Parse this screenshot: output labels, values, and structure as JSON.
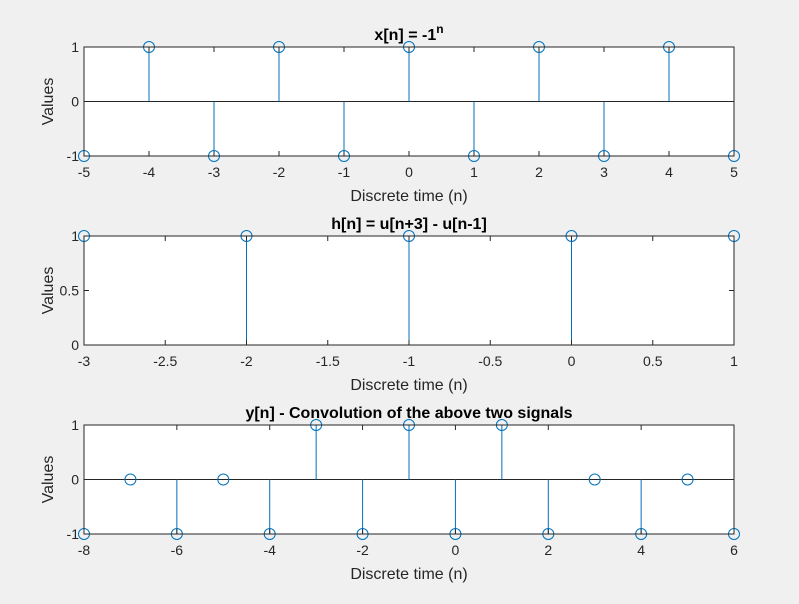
{
  "chart_data": [
    {
      "type": "stem",
      "title": "x[n] = -1",
      "title_superscript": "n",
      "xlabel": "Discrete time (n)",
      "ylabel": "Values",
      "xlim": [
        -5,
        5
      ],
      "ylim": [
        -1,
        1
      ],
      "xticks": [
        -5,
        -4,
        -3,
        -2,
        -1,
        0,
        1,
        2,
        3,
        4,
        5
      ],
      "yticks": [
        -1,
        0,
        1
      ],
      "xtick_labels": [
        "-5",
        "-4",
        "-3",
        "-2",
        "-1",
        "0",
        "1",
        "2",
        "3",
        "4",
        "5"
      ],
      "ytick_labels": [
        "-1",
        "0",
        "1"
      ],
      "x": [
        -5,
        -4,
        -3,
        -2,
        -1,
        0,
        1,
        2,
        3,
        4,
        5
      ],
      "y": [
        -1,
        1,
        -1,
        1,
        -1,
        1,
        -1,
        1,
        -1,
        1,
        -1
      ],
      "color": "#0072BD",
      "grid": false
    },
    {
      "type": "stem",
      "title": "h[n] = u[n+3] - u[n-1]",
      "xlabel": "Discrete time (n)",
      "ylabel": "Values",
      "xlim": [
        -3,
        1
      ],
      "ylim": [
        0,
        1
      ],
      "xticks": [
        -3,
        -2.5,
        -2,
        -1.5,
        -1,
        -0.5,
        0,
        0.5,
        1
      ],
      "yticks": [
        0,
        0.5,
        1
      ],
      "xtick_labels": [
        "-3",
        "-2.5",
        "-2",
        "-1.5",
        "-1",
        "-0.5",
        "0",
        "0.5",
        "1"
      ],
      "ytick_labels": [
        "0",
        "0.5",
        "1"
      ],
      "x": [
        -3,
        -2,
        -1,
        0,
        1
      ],
      "y": [
        1,
        1,
        1,
        1,
        1
      ],
      "color": "#0072BD",
      "grid": false
    },
    {
      "type": "stem",
      "title": "y[n] - Convolution of the above two signals",
      "xlabel": "Discrete time (n)",
      "ylabel": "Values",
      "xlim": [
        -8,
        6
      ],
      "ylim": [
        -1,
        1
      ],
      "xticks": [
        -8,
        -6,
        -4,
        -2,
        0,
        2,
        4,
        6
      ],
      "yticks": [
        -1,
        0,
        1
      ],
      "xtick_labels": [
        "-8",
        "-6",
        "-4",
        "-2",
        "0",
        "2",
        "4",
        "6"
      ],
      "ytick_labels": [
        "-1",
        "0",
        "1"
      ],
      "x": [
        -8,
        -7,
        -6,
        -5,
        -4,
        -3,
        -2,
        -1,
        0,
        1,
        2,
        3,
        4,
        5,
        6
      ],
      "y": [
        -1,
        0,
        -1,
        0,
        -1,
        1,
        -1,
        1,
        -1,
        1,
        -1,
        0,
        -1,
        0,
        -1
      ],
      "color": "#0072BD",
      "grid": false
    }
  ]
}
